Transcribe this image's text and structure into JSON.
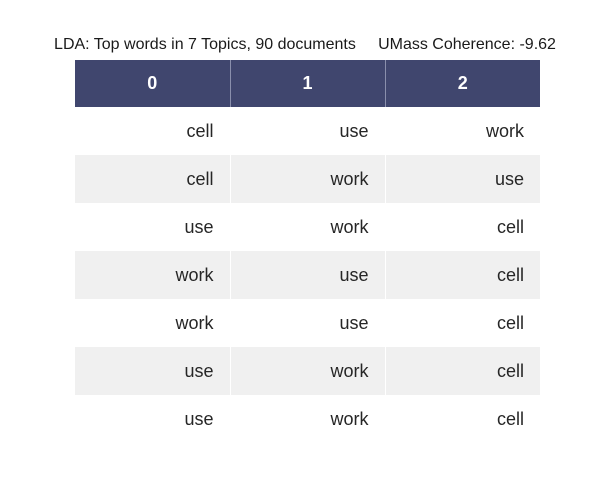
{
  "chart_data": {
    "type": "table",
    "title": "LDA: Top words in 7 Topics, 90 documents     UMass Coherence: -9.62",
    "columns": [
      "0",
      "1",
      "2"
    ],
    "rows": [
      [
        "cell",
        "use",
        "work"
      ],
      [
        "cell",
        "work",
        "use"
      ],
      [
        "use",
        "work",
        "cell"
      ],
      [
        "work",
        "use",
        "cell"
      ],
      [
        "work",
        "use",
        "cell"
      ],
      [
        "use",
        "work",
        "cell"
      ],
      [
        "use",
        "work",
        "cell"
      ]
    ],
    "colors": {
      "header_bg": "#40466e",
      "header_text": "#ffffff",
      "row_alt_bg": "#f0f0f0",
      "row_bg": "#ffffff"
    }
  }
}
